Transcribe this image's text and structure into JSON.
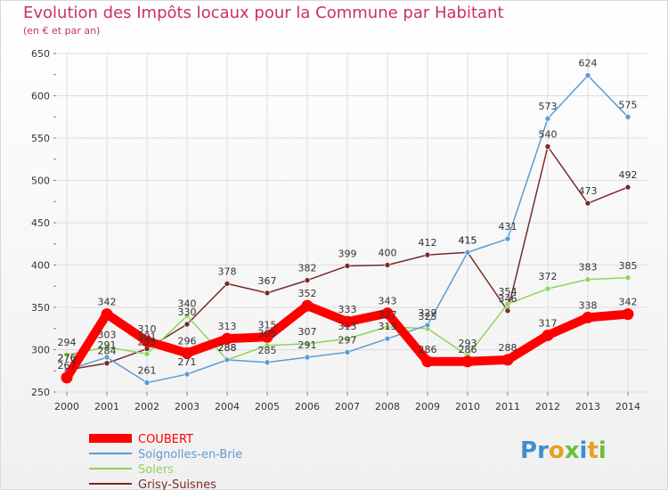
{
  "title": "Evolution des Impôts locaux pour la Commune par Habitant",
  "subtitle": "(en € et par an)",
  "logo": {
    "text": "Proxiti",
    "letters": [
      "P",
      "r",
      "o",
      "x",
      "i",
      "t",
      "i"
    ]
  },
  "colors": {
    "title": "#c8325a",
    "grid": "#dddddd",
    "axis_tick": "#e05070"
  },
  "chart_data": {
    "type": "line",
    "x": [
      2000,
      2001,
      2002,
      2003,
      2004,
      2005,
      2006,
      2007,
      2008,
      2009,
      2010,
      2011,
      2012,
      2013,
      2014
    ],
    "ylim": [
      250,
      650
    ],
    "yticks": [
      250,
      300,
      350,
      400,
      450,
      500,
      550,
      600,
      650
    ],
    "grid": true,
    "legend_position": "bottom-left",
    "series": [
      {
        "name": "COUBERT",
        "color": "#ff0000",
        "values": [
          267,
          342,
          310,
          296,
          313,
          315,
          352,
          333,
          343,
          286,
          286,
          288,
          317,
          338,
          342
        ]
      },
      {
        "name": "Soignolles-en-Brie",
        "color": "#5b9bd5",
        "values": [
          276,
          291,
          261,
          271,
          288,
          285,
          291,
          297,
          313,
          329,
          415,
          431,
          573,
          624,
          575
        ]
      },
      {
        "name": "Solers",
        "color": "#8fd35a",
        "values": [
          294,
          303,
          295,
          340,
          288,
          305,
          307,
          313,
          327,
          325,
          293,
          354,
          372,
          383,
          385
        ]
      },
      {
        "name": "Grisy-Suisnes",
        "color": "#7a2a2a",
        "values": [
          276,
          284,
          301,
          330,
          378,
          367,
          382,
          399,
          400,
          412,
          415,
          346,
          540,
          473,
          492
        ]
      }
    ],
    "labels": [
      [
        "267",
        "342",
        "310",
        "296",
        "313",
        "315",
        "352",
        "333",
        "343",
        "286",
        "286",
        "288",
        "317",
        "338",
        "342"
      ],
      [
        "276",
        "291",
        "261",
        "271",
        "288",
        "285",
        "291",
        "297",
        "313",
        "329",
        "415",
        "431",
        "573",
        "624",
        "575"
      ],
      [
        "294",
        "303",
        "295",
        "340",
        "288",
        "305",
        "307",
        "313",
        "327",
        "325",
        "293",
        "354",
        "372",
        "383",
        "385"
      ],
      [
        "276",
        "284",
        "301",
        "330",
        "378",
        "367",
        "382",
        "399",
        "400",
        "412",
        "415",
        "346",
        "540",
        "473",
        "492"
      ]
    ]
  }
}
